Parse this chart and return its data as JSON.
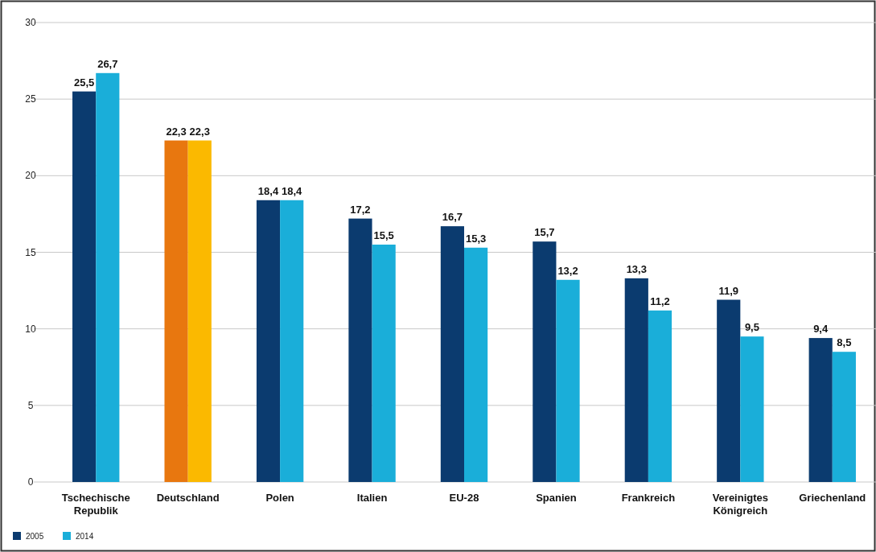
{
  "chart_data": {
    "type": "bar",
    "categories": [
      "Tschechische Republik",
      "Deutschland",
      "Polen",
      "Italien",
      "EU-28",
      "Spanien",
      "Frankreich",
      "Vereinigtes Königreich",
      "Griechenland"
    ],
    "series": [
      {
        "name": "2005",
        "color": "#0b3b6f",
        "colors": [
          "#0b3b6f",
          "#e8770f",
          "#0b3b6f",
          "#0b3b6f",
          "#0b3b6f",
          "#0b3b6f",
          "#0b3b6f",
          "#0b3b6f",
          "#0b3b6f"
        ],
        "values": [
          25.5,
          22.3,
          18.4,
          17.2,
          16.7,
          15.7,
          13.3,
          11.9,
          9.4
        ],
        "value_labels": [
          "25,5",
          "22,3",
          "18,4",
          "17,2",
          "16,7",
          "15,7",
          "13,3",
          "11,9",
          "9,4"
        ]
      },
      {
        "name": "2014",
        "color": "#1aaed9",
        "colors": [
          "#1aaed9",
          "#fbb900",
          "#1aaed9",
          "#1aaed9",
          "#1aaed9",
          "#1aaed9",
          "#1aaed9",
          "#1aaed9",
          "#1aaed9"
        ],
        "values": [
          26.7,
          22.3,
          18.4,
          15.5,
          15.3,
          13.2,
          11.2,
          9.5,
          8.5
        ],
        "value_labels": [
          "26,7",
          "22,3",
          "18,4",
          "15,5",
          "15,3",
          "13,2",
          "11,2",
          "9,5",
          "8,5"
        ]
      }
    ],
    "ylim": [
      0,
      30
    ],
    "yticks": [
      0,
      5,
      10,
      15,
      20,
      25,
      30
    ],
    "grid": "y",
    "legend": "bottom left"
  }
}
